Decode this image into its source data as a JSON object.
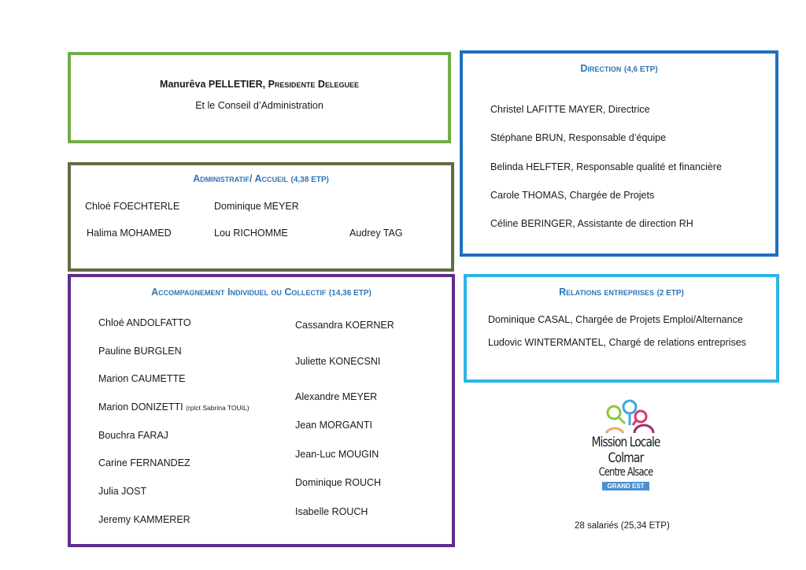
{
  "president": {
    "name": "Manurêva PELLETIER,",
    "role": "Presidente Deleguee",
    "council": "Et le Conseil d’Administration"
  },
  "administratif": {
    "title": "Administratif/ Accueil",
    "etp": "(4,38 ETP)",
    "members": [
      "Chloé FOECHTERLE",
      "Dominique MEYER",
      "Halima MOHAMED",
      "Lou RICHOMME",
      "Audrey TAG"
    ]
  },
  "accompagnement": {
    "title": "Accompagnement Individuel ou Collectif",
    "etp": "(14,36 ETP)",
    "left": [
      "Chloé ANDOLFATTO",
      "Pauline BURGLEN",
      "Marion CAUMETTE",
      "Marion DONIZETTI",
      "Bouchra FARAJ",
      "Carine FERNANDEZ",
      "Julia JOST",
      "Jeremy KAMMERER"
    ],
    "donizetti_note": "(rplct Sabrina TOUIL)",
    "right": [
      "Cassandra KOERNER",
      "Juliette KONECSNI",
      "Alexandre MEYER",
      "Jean MORGANTI",
      "Jean-Luc MOUGIN",
      "Dominique ROUCH",
      "Isabelle ROUCH"
    ]
  },
  "direction": {
    "title": "Direction",
    "etp": "(4,6 ETP)",
    "members": [
      "Christel LAFITTE MAYER, Directrice",
      "Stéphane BRUN, Responsable d’équipe",
      "Belinda HELFTER, Responsable qualité et financière",
      "Carole THOMAS, Chargée de Projets",
      "Céline BERINGER, Assistante de direction RH"
    ]
  },
  "relations": {
    "title": "Relations entreprises",
    "etp": "(2 ETP)",
    "members": [
      "Dominique CASAL, Chargée de Projets Emploi/Alternance",
      "Ludovic WINTERMANTEL, Chargé de relations entreprises"
    ]
  },
  "logo": {
    "line1": "Mission Locale",
    "line2": "Colmar",
    "line3": "Centre Alsace",
    "badge": "GRAND EST"
  },
  "summary": "28 salariés (25,34 ETP)",
  "colors": {
    "president": "#70ad47",
    "administratif": "#636b45",
    "accompagnement": "#5e2d91",
    "direction": "#1f6fbf",
    "relations": "#2db5e8",
    "title": "#2e75b6"
  }
}
